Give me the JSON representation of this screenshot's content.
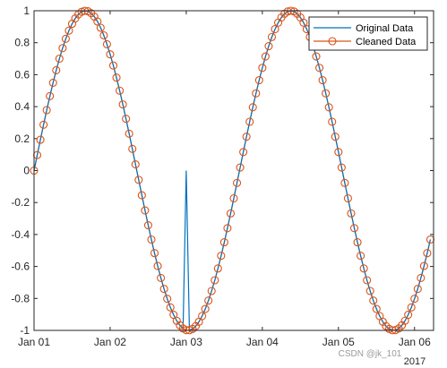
{
  "chart_data": {
    "type": "line",
    "x_axis": {
      "ticks": [
        "Jan 01",
        "Jan 02",
        "Jan 03",
        "Jan 04",
        "Jan 05",
        "Jan 06"
      ],
      "tick_values_days": [
        0,
        1,
        2,
        3,
        4,
        5
      ],
      "secondary_label": "2017",
      "range_days": [
        0,
        5.25
      ]
    },
    "y_axis": {
      "ticks": [
        "1",
        "0.8",
        "0.6",
        "0.4",
        "0.2",
        "0",
        "-0.2",
        "-0.4",
        "-0.6",
        "-0.8",
        "-1"
      ],
      "tick_values": [
        1,
        0.8,
        0.6,
        0.4,
        0.2,
        0,
        -0.2,
        -0.4,
        -0.6,
        -0.8,
        -1
      ],
      "ylim": [
        -1,
        1
      ]
    },
    "series": [
      {
        "name": "Original Data",
        "color": "#0072BD",
        "style": "line",
        "outlier": {
          "x_day": 2.0,
          "y": 0
        }
      },
      {
        "name": "Cleaned Data",
        "color": "#D95319",
        "style": "line-with-circle-markers"
      }
    ],
    "signal": "sin",
    "sample_step_hours": 1,
    "x_start_day": 0,
    "x_end_day": 5.2,
    "legend_position": "top-right",
    "grid": false
  },
  "watermark": "CSDN @jk_101"
}
